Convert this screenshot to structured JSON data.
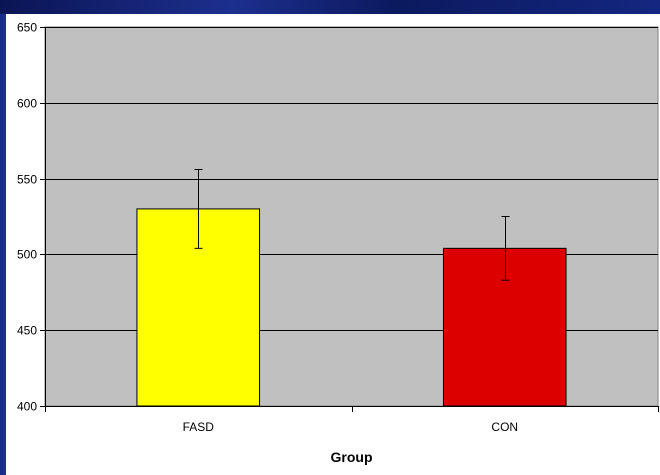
{
  "colors": {
    "plot_background": "#c0c0c0",
    "gridline": "#000000",
    "bar_colors": [
      "#ffff00",
      "#dd0000"
    ],
    "error_bar": "#000000"
  },
  "chart_data": {
    "type": "bar",
    "categories": [
      "FASD",
      "CON"
    ],
    "values": [
      530,
      504
    ],
    "error_bars": [
      {
        "lower": 504,
        "upper": 556
      },
      {
        "lower": 483,
        "upper": 525
      }
    ],
    "title": "",
    "xlabel": "Group",
    "ylabel": "",
    "ylim": [
      400,
      650
    ],
    "yticks": [
      "400",
      "450",
      "500",
      "550",
      "600",
      "650"
    ],
    "grid": true,
    "legend": "none"
  }
}
